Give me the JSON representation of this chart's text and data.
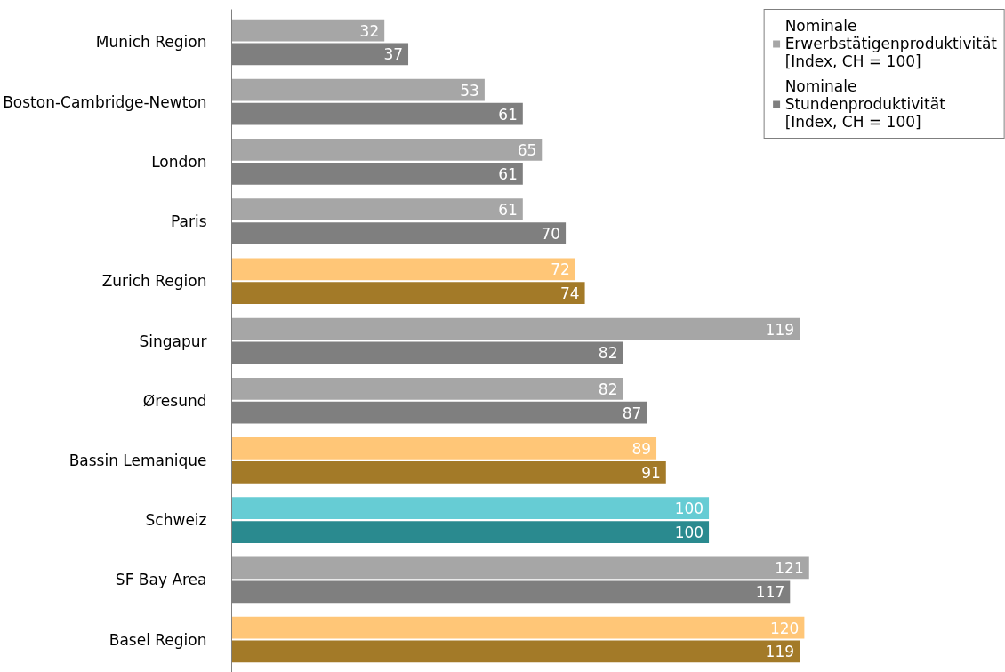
{
  "chart_data": {
    "type": "bar",
    "orientation": "horizontal",
    "categories": [
      "Munich Region",
      "Boston-Cambridge-Newton",
      "London",
      "Paris",
      "Zurich Region",
      "Singapur",
      "Øresund",
      "Bassin Lemanique",
      "Schweiz",
      "SF Bay Area",
      "Basel Region"
    ],
    "series": [
      {
        "name": "Nominale\nErwerbstätigenproduktivität\n[Index, CH = 100]",
        "color": "#a6a6a6",
        "values": [
          32,
          53,
          65,
          61,
          72,
          119,
          82,
          89,
          100,
          121,
          120
        ],
        "colors": [
          "#a6a6a6",
          "#a6a6a6",
          "#a6a6a6",
          "#a6a6a6",
          "#ffc677",
          "#a6a6a6",
          "#a6a6a6",
          "#ffc677",
          "#66ccd4",
          "#a6a6a6",
          "#ffc677"
        ]
      },
      {
        "name": "Nominale\nStundenproduktivität\n[Index, CH = 100]",
        "color": "#7f7f7f",
        "values": [
          37,
          61,
          61,
          70,
          74,
          82,
          87,
          91,
          100,
          117,
          119
        ],
        "colors": [
          "#7f7f7f",
          "#7f7f7f",
          "#7f7f7f",
          "#7f7f7f",
          "#a37a28",
          "#7f7f7f",
          "#7f7f7f",
          "#a37a28",
          "#2a8a8f",
          "#7f7f7f",
          "#a37a28"
        ]
      }
    ],
    "data_labels": true,
    "legend": "top right",
    "grid": false
  }
}
